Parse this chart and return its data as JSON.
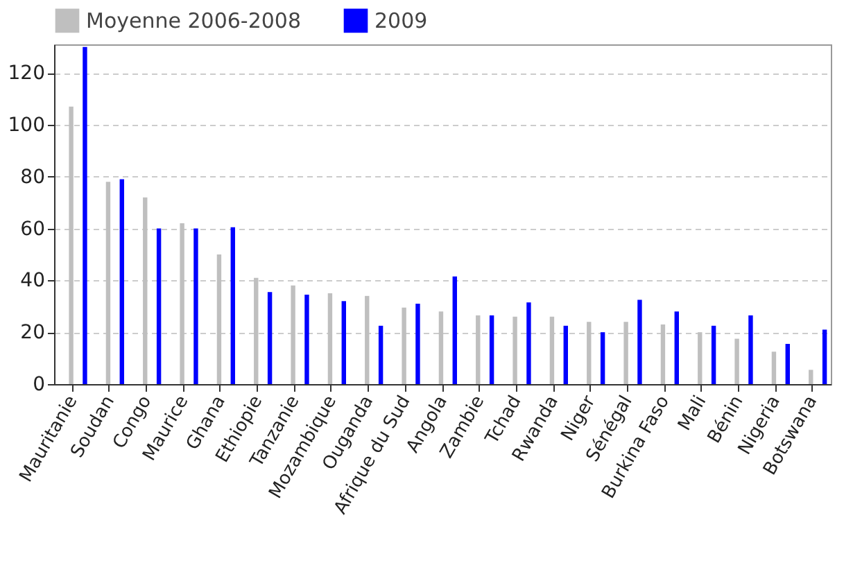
{
  "chart_data": {
    "type": "bar",
    "categories": [
      "Mauritanie",
      "Soudan",
      "Congo",
      "Maurice",
      "Ghana",
      "Ethiopie",
      "Tanzanie",
      "Mozambique",
      "Ouganda",
      "Afrique du Sud",
      "Angola",
      "Zambie",
      "Tchad",
      "Rwanda",
      "Niger",
      "Sénégal",
      "Burkina Faso",
      "Mali",
      "Bénin",
      "Nigeria",
      "Botswana"
    ],
    "series": [
      {
        "name": "Moyenne 2006-2008",
        "color": "#bfbfbf",
        "values": [
          107,
          78,
          72,
          62,
          50,
          41,
          38,
          35,
          34,
          29.5,
          28,
          26.5,
          26,
          26,
          24,
          24,
          23,
          20,
          17.5,
          12.5,
          5.5
        ]
      },
      {
        "name": "2009",
        "color": "#0000ff",
        "values": [
          130,
          79,
          60,
          60,
          60.5,
          35.5,
          34.5,
          32,
          22.5,
          31,
          41.5,
          26.5,
          31.5,
          22.5,
          20,
          32.5,
          28,
          22.5,
          26.5,
          15.5,
          21
        ]
      }
    ],
    "ylim": [
      0,
      131
    ],
    "yticks": [
      0,
      20,
      40,
      60,
      80,
      100,
      120
    ],
    "grid": "y",
    "legend": "top left"
  }
}
